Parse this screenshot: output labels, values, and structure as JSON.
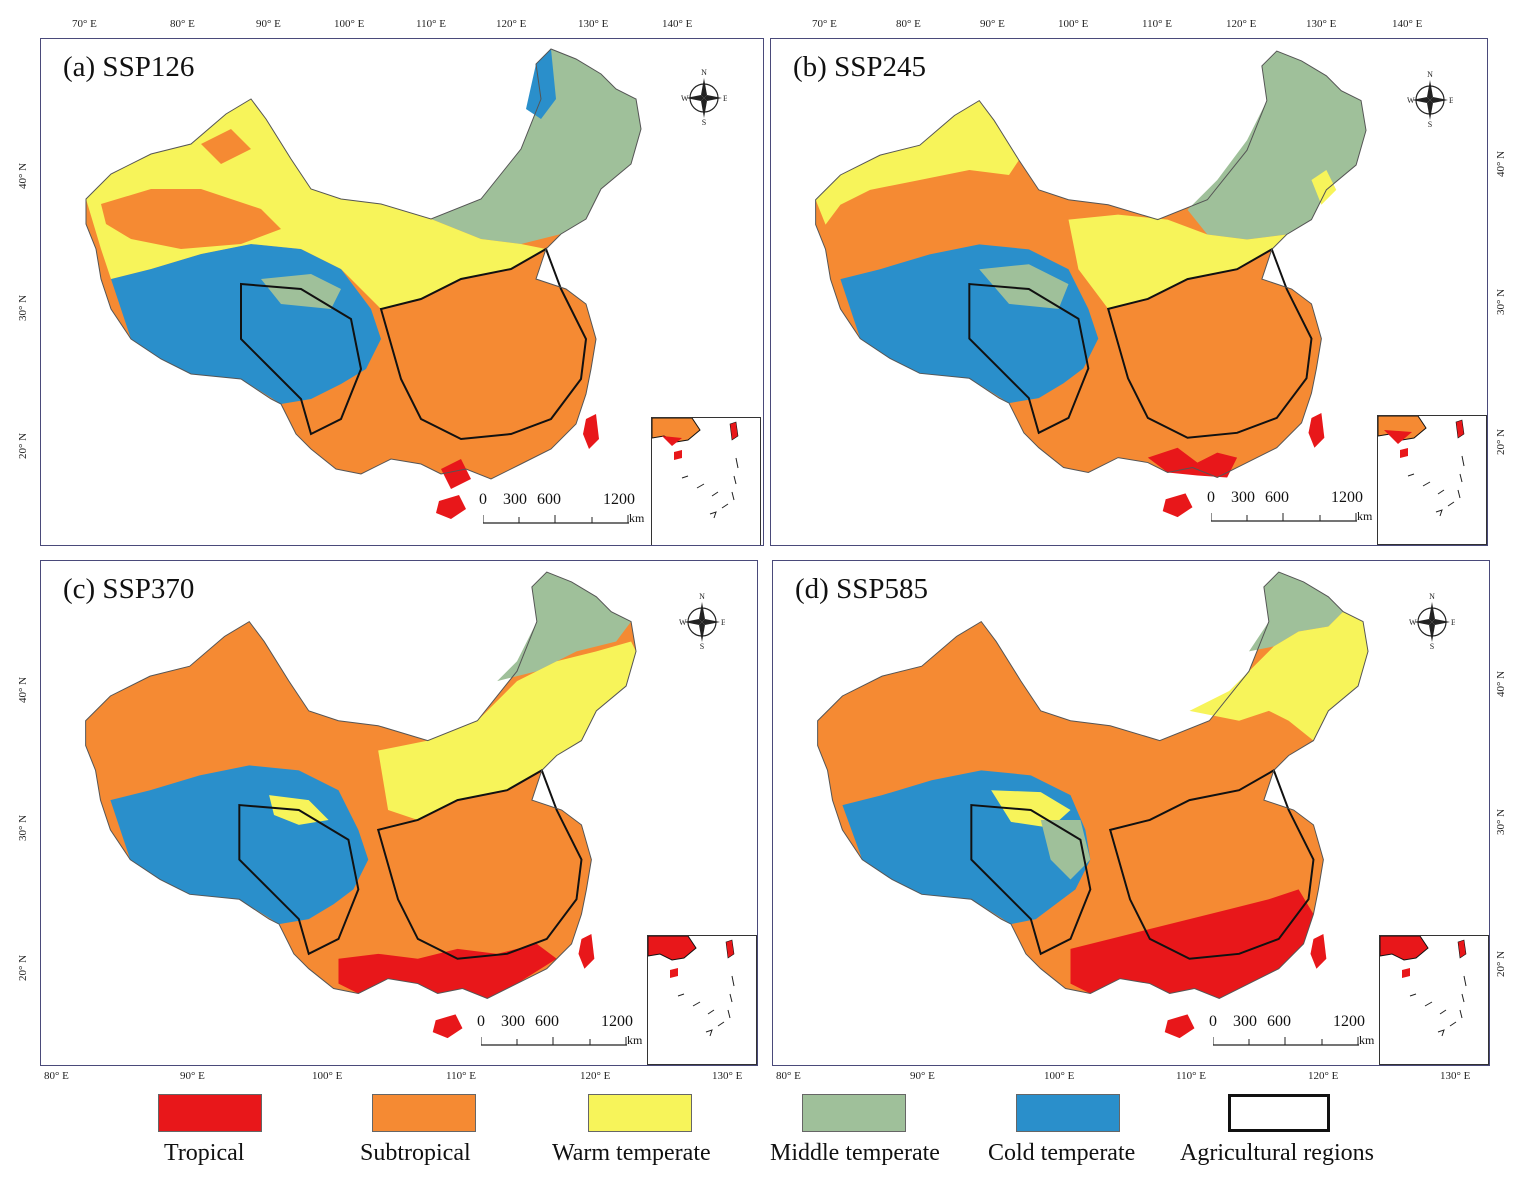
{
  "figure": {
    "colors": {
      "tropical": "#e8171a",
      "subtropical": "#f58a33",
      "warm_temperate": "#f7f45a",
      "middle_temperate": "#9fc09a",
      "cold_temperate": "#2a8fcb",
      "border": "#111111"
    },
    "panels": [
      {
        "title": "(a) SSP126"
      },
      {
        "title": "(b) SSP245"
      },
      {
        "title": "(c) SSP370"
      },
      {
        "title": "(d) SSP585"
      }
    ],
    "top_ticks": [
      "70° E",
      "80° E",
      "90° E",
      "100° E",
      "110° E",
      "120° E",
      "130° E",
      "140° E"
    ],
    "bottom_ticks": [
      "80° E",
      "90° E",
      "100° E",
      "110° E",
      "120° E",
      "130° E"
    ],
    "lat_ticks": [
      "40° N",
      "30° N",
      "20° N"
    ],
    "compass": {
      "n": "N",
      "s": "S",
      "e": "E",
      "w": "W"
    },
    "scale_bar": {
      "labels": [
        "0",
        "300",
        "600",
        "1200"
      ],
      "unit": "km"
    },
    "legend": [
      {
        "label": "Tropical",
        "color": "#e8171a"
      },
      {
        "label": "Subtropical",
        "color": "#f58a33"
      },
      {
        "label": "Warm temperate",
        "color": "#f7f45a"
      },
      {
        "label": "Middle temperate",
        "color": "#9fc09a"
      },
      {
        "label": "Cold temperate",
        "color": "#2a8fcb"
      },
      {
        "label": "Agricultural regions",
        "color": "#ffffff"
      }
    ]
  }
}
